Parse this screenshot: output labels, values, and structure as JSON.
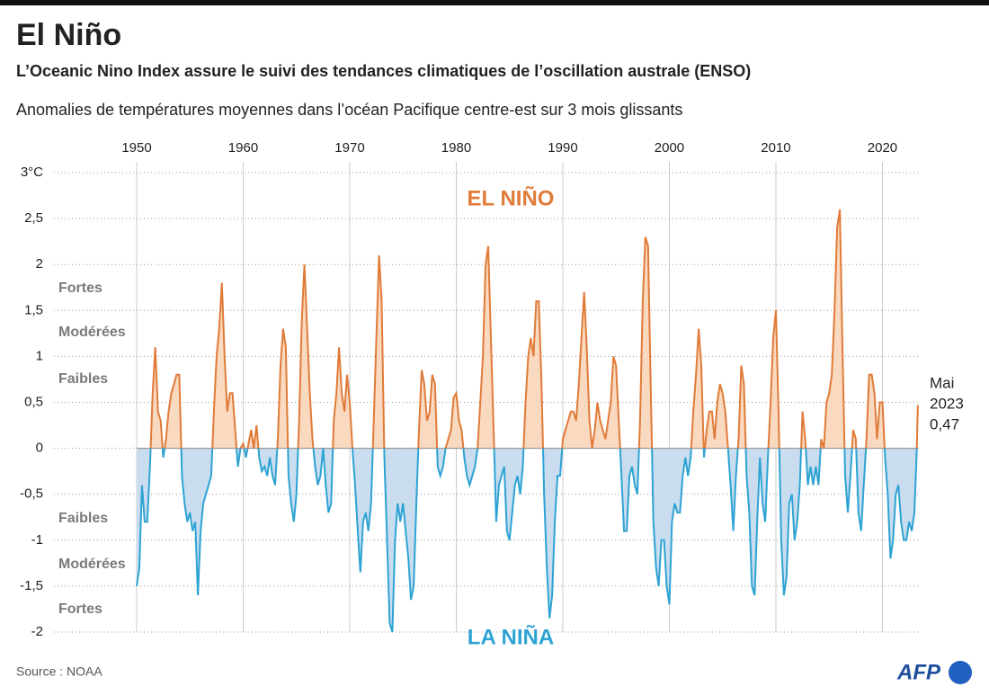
{
  "chart_data": {
    "type": "area",
    "title": "El Niño",
    "subtitle": "L’Oceanic Nino Index assure le suivi des tendances climatiques de l’oscillation australe (ENSO)",
    "description": "Anomalies de températures moyennes dans l’océan Pacifique centre-est sur 3 mois glissants",
    "source": "Source : NOAA",
    "logo": "AFP",
    "annotations": {
      "positive": "EL NIÑO",
      "negative": "LA NIÑA"
    },
    "strength_labels": {
      "positive": [
        "Faibles",
        "Modérées",
        "Fortes"
      ],
      "negative": [
        "Faibles",
        "Modérées",
        "Fortes"
      ]
    },
    "end_label": {
      "month": "Mai",
      "year": "2023",
      "value_label": "0,47"
    },
    "positive_color": "#e07b39",
    "positive_fill": "#f9d9c0",
    "negative_color": "#2ea3d3",
    "negative_fill": "#c9ddef",
    "xlim": [
      1950,
      2023.42
    ],
    "xticks": [
      1950,
      1960,
      1970,
      1980,
      1990,
      2000,
      2010,
      2020
    ],
    "ylim": [
      -2,
      3
    ],
    "yticks": [
      {
        "value": 3,
        "label": "3°C"
      },
      {
        "value": 2.5,
        "label": "2,5"
      },
      2,
      {
        "value": 1.5,
        "label": "1,5"
      },
      1,
      {
        "value": 0.5,
        "label": "0,5"
      },
      0,
      {
        "value": -0.5,
        "label": "-0,5"
      },
      -1,
      {
        "value": -1.5,
        "label": "-1,5"
      },
      -2
    ],
    "grid": true,
    "x": [
      1950,
      1950.25,
      1950.5,
      1950.75,
      1951,
      1951.25,
      1951.5,
      1951.75,
      1952,
      1952.25,
      1952.5,
      1952.75,
      1953,
      1953.25,
      1953.5,
      1953.75,
      1954,
      1954.25,
      1954.5,
      1954.75,
      1955,
      1955.25,
      1955.5,
      1955.75,
      1956,
      1956.25,
      1956.5,
      1956.75,
      1957,
      1957.25,
      1957.5,
      1957.75,
      1958,
      1958.25,
      1958.5,
      1958.75,
      1959,
      1959.25,
      1959.5,
      1959.75,
      1960,
      1960.25,
      1960.5,
      1960.75,
      1961,
      1961.25,
      1961.5,
      1961.75,
      1962,
      1962.25,
      1962.5,
      1962.75,
      1963,
      1963.25,
      1963.5,
      1963.75,
      1964,
      1964.25,
      1964.5,
      1964.75,
      1965,
      1965.25,
      1965.5,
      1965.75,
      1966,
      1966.25,
      1966.5,
      1966.75,
      1967,
      1967.25,
      1967.5,
      1967.75,
      1968,
      1968.25,
      1968.5,
      1968.75,
      1969,
      1969.25,
      1969.5,
      1969.75,
      1970,
      1970.25,
      1970.5,
      1970.75,
      1971,
      1971.25,
      1971.5,
      1971.75,
      1972,
      1972.25,
      1972.5,
      1972.75,
      1973,
      1973.25,
      1973.5,
      1973.75,
      1974,
      1974.25,
      1974.5,
      1974.75,
      1975,
      1975.25,
      1975.5,
      1975.75,
      1976,
      1976.25,
      1976.5,
      1976.75,
      1977,
      1977.25,
      1977.5,
      1977.75,
      1978,
      1978.25,
      1978.5,
      1978.75,
      1979,
      1979.25,
      1979.5,
      1979.75,
      1980,
      1980.25,
      1980.5,
      1980.75,
      1981,
      1981.25,
      1981.5,
      1981.75,
      1982,
      1982.25,
      1982.5,
      1982.75,
      1983,
      1983.25,
      1983.5,
      1983.75,
      1984,
      1984.25,
      1984.5,
      1984.75,
      1985,
      1985.25,
      1985.5,
      1985.75,
      1986,
      1986.25,
      1986.5,
      1986.75,
      1987,
      1987.25,
      1987.5,
      1987.75,
      1988,
      1988.25,
      1988.5,
      1988.75,
      1989,
      1989.25,
      1989.5,
      1989.75,
      1990,
      1990.25,
      1990.5,
      1990.75,
      1991,
      1991.25,
      1991.5,
      1991.75,
      1992,
      1992.25,
      1992.5,
      1992.75,
      1993,
      1993.25,
      1993.5,
      1993.75,
      1994,
      1994.25,
      1994.5,
      1994.75,
      1995,
      1995.25,
      1995.5,
      1995.75,
      1996,
      1996.25,
      1996.5,
      1996.75,
      1997,
      1997.25,
      1997.5,
      1997.75,
      1998,
      1998.25,
      1998.5,
      1998.75,
      1999,
      1999.25,
      1999.5,
      1999.75,
      2000,
      2000.25,
      2000.5,
      2000.75,
      2001,
      2001.25,
      2001.5,
      2001.75,
      2002,
      2002.25,
      2002.5,
      2002.75,
      2003,
      2003.25,
      2003.5,
      2003.75,
      2004,
      2004.25,
      2004.5,
      2004.75,
      2005,
      2005.25,
      2005.5,
      2005.75,
      2006,
      2006.25,
      2006.5,
      2006.75,
      2007,
      2007.25,
      2007.5,
      2007.75,
      2008,
      2008.25,
      2008.5,
      2008.75,
      2009,
      2009.25,
      2009.5,
      2009.75,
      2010,
      2010.25,
      2010.5,
      2010.75,
      2011,
      2011.25,
      2011.5,
      2011.75,
      2012,
      2012.25,
      2012.5,
      2012.75,
      2013,
      2013.25,
      2013.5,
      2013.75,
      2014,
      2014.25,
      2014.5,
      2014.75,
      2015,
      2015.25,
      2015.5,
      2015.75,
      2016,
      2016.25,
      2016.5,
      2016.75,
      2017,
      2017.25,
      2017.5,
      2017.75,
      2018,
      2018.25,
      2018.5,
      2018.75,
      2019,
      2019.25,
      2019.5,
      2019.75,
      2020,
      2020.25,
      2020.5,
      2020.75,
      2021,
      2021.25,
      2021.5,
      2021.75,
      2022,
      2022.25,
      2022.5,
      2022.75,
      2023,
      2023.2,
      2023.33
    ],
    "values": [
      -1.5,
      -1.3,
      -0.4,
      -0.8,
      -0.8,
      -0.2,
      0.6,
      1.1,
      0.4,
      0.3,
      -0.1,
      0.1,
      0.4,
      0.6,
      0.7,
      0.8,
      0.8,
      -0.3,
      -0.6,
      -0.8,
      -0.7,
      -0.9,
      -0.8,
      -1.6,
      -0.9,
      -0.6,
      -0.5,
      -0.4,
      -0.3,
      0.4,
      1.0,
      1.3,
      1.8,
      1.0,
      0.4,
      0.6,
      0.6,
      0.2,
      -0.2,
      0.0,
      0.05,
      -0.1,
      0.05,
      0.2,
      0.0,
      0.25,
      -0.1,
      -0.25,
      -0.2,
      -0.3,
      -0.1,
      -0.3,
      -0.4,
      0.1,
      0.9,
      1.3,
      1.1,
      -0.3,
      -0.6,
      -0.8,
      -0.5,
      0.3,
      1.4,
      2.0,
      1.3,
      0.6,
      0.1,
      -0.2,
      -0.4,
      -0.3,
      0.0,
      -0.4,
      -0.7,
      -0.6,
      0.3,
      0.6,
      1.1,
      0.6,
      0.4,
      0.8,
      0.5,
      0.0,
      -0.4,
      -0.9,
      -1.35,
      -0.8,
      -0.7,
      -0.9,
      -0.6,
      0.3,
      1.2,
      2.1,
      1.6,
      -0.1,
      -1.0,
      -1.9,
      -2.0,
      -1.0,
      -0.6,
      -0.8,
      -0.6,
      -0.9,
      -1.2,
      -1.65,
      -1.5,
      -0.6,
      0.2,
      0.85,
      0.7,
      0.3,
      0.4,
      0.8,
      0.7,
      -0.2,
      -0.3,
      -0.2,
      0.0,
      0.1,
      0.2,
      0.55,
      0.6,
      0.3,
      0.2,
      -0.1,
      -0.3,
      -0.4,
      -0.3,
      -0.2,
      0.0,
      0.5,
      1.0,
      2.0,
      2.2,
      1.2,
      0.2,
      -0.8,
      -0.4,
      -0.3,
      -0.2,
      -0.9,
      -1.0,
      -0.7,
      -0.4,
      -0.3,
      -0.5,
      -0.2,
      0.5,
      1.0,
      1.2,
      1.0,
      1.6,
      1.6,
      0.7,
      -0.5,
      -1.3,
      -1.85,
      -1.6,
      -0.8,
      -0.3,
      -0.3,
      0.1,
      0.2,
      0.3,
      0.4,
      0.4,
      0.3,
      0.7,
      1.2,
      1.7,
      1.1,
      0.3,
      0.0,
      0.2,
      0.5,
      0.3,
      0.2,
      0.1,
      0.3,
      0.5,
      1.0,
      0.9,
      0.3,
      -0.3,
      -0.9,
      -0.9,
      -0.3,
      -0.2,
      -0.4,
      -0.5,
      0.3,
      1.6,
      2.3,
      2.2,
      0.7,
      -0.8,
      -1.3,
      -1.5,
      -1.0,
      -1.0,
      -1.5,
      -1.7,
      -0.8,
      -0.6,
      -0.7,
      -0.7,
      -0.3,
      -0.1,
      -0.3,
      -0.1,
      0.4,
      0.8,
      1.3,
      0.9,
      -0.1,
      0.2,
      0.4,
      0.4,
      0.1,
      0.5,
      0.7,
      0.6,
      0.4,
      0.0,
      -0.4,
      -0.9,
      -0.3,
      0.1,
      0.9,
      0.7,
      -0.3,
      -0.7,
      -1.5,
      -1.6,
      -0.8,
      -0.1,
      -0.6,
      -0.8,
      -0.1,
      0.5,
      1.2,
      1.5,
      0.4,
      -1.0,
      -1.6,
      -1.4,
      -0.6,
      -0.5,
      -1.0,
      -0.8,
      -0.4,
      0.4,
      0.1,
      -0.4,
      -0.2,
      -0.4,
      -0.2,
      -0.4,
      0.1,
      0.0,
      0.5,
      0.6,
      0.8,
      1.5,
      2.4,
      2.6,
      1.1,
      -0.3,
      -0.7,
      -0.3,
      0.2,
      0.1,
      -0.7,
      -0.9,
      -0.4,
      0.1,
      0.8,
      0.8,
      0.6,
      0.1,
      0.5,
      0.5,
      -0.1,
      -0.5,
      -1.2,
      -1.0,
      -0.5,
      -0.4,
      -0.8,
      -1.0,
      -1.0,
      -0.8,
      -0.9,
      -0.7,
      -0.1,
      0.47
    ]
  }
}
